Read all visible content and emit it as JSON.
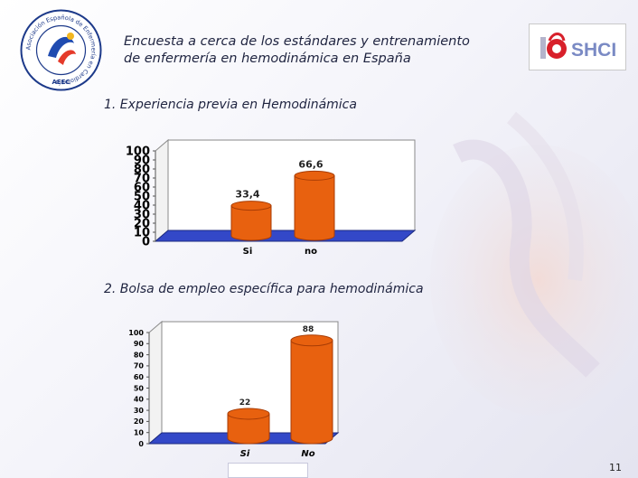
{
  "header": {
    "title_line1": "Encuesta a cerca de los estándares y entrenamiento",
    "title_line2": "de enfermería en hemodinámica en España"
  },
  "logos": {
    "left_ring_text": "Asociación Española de Enfermería en Cardiología",
    "left_abbr": "AEEC",
    "right_text": "SHCI"
  },
  "sections": {
    "s1": "1. Experiencia previa en Hemodinámica",
    "s2": "2. Bolsa de empleo específica para hemodinámica"
  },
  "chart_data": [
    {
      "type": "bar",
      "categories": [
        "Si",
        "no"
      ],
      "values": [
        33.4,
        66.6
      ],
      "value_labels": [
        "33,4",
        "66,6"
      ],
      "title": "",
      "xlabel": "",
      "ylabel": "",
      "ylim": [
        0,
        100
      ],
      "yticks": [
        0,
        10,
        20,
        30,
        40,
        50,
        60,
        70,
        80,
        90,
        100
      ],
      "grid": false,
      "legend": "none",
      "colors": {
        "bar": "#e8610f",
        "bar_dark": "#a83c05",
        "floor": "#3348c8"
      }
    },
    {
      "type": "bar",
      "categories": [
        "Si",
        "No"
      ],
      "values": [
        22,
        88
      ],
      "value_labels": [
        "22",
        "88"
      ],
      "title": "",
      "xlabel": "",
      "ylabel": "",
      "ylim": [
        0,
        100
      ],
      "yticks": [
        0,
        10,
        20,
        30,
        40,
        50,
        60,
        70,
        80,
        90,
        100
      ],
      "grid": false,
      "legend": "none",
      "colors": {
        "bar": "#e8610f",
        "bar_dark": "#a83c05",
        "floor": "#3348c8"
      }
    }
  ],
  "footer": {
    "page_number": "11"
  }
}
